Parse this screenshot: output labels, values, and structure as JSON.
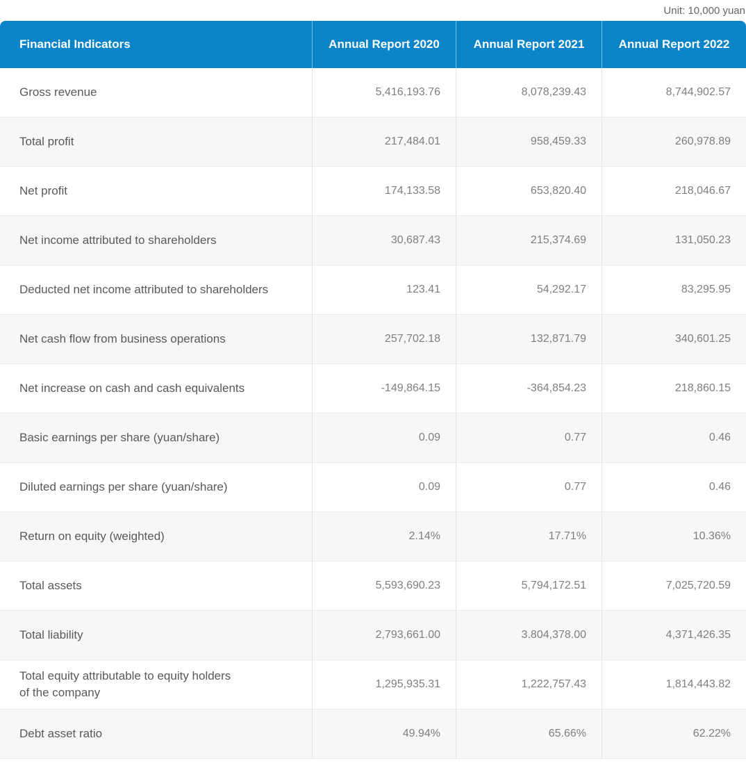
{
  "unit_label": "Unit: 10,000 yuan",
  "colors": {
    "header_bg": "#0a84c8",
    "header_text": "#ffffff",
    "header_divider": "#7ebede",
    "row_alt_bg": "#f7f7f7",
    "row_border": "#ebebeb",
    "column_border": "#e4e4e4",
    "label_text": "#595959",
    "value_text": "#7f7f7f",
    "unit_text": "#666666"
  },
  "table": {
    "headers": [
      "Financial Indicators",
      "Annual Report 2020",
      "Annual Report 2021",
      "Annual Report 2022"
    ],
    "rows": [
      {
        "label": "Gross revenue",
        "values": [
          "5,416,193.76",
          "8,078,239.43",
          "8,744,902.57"
        ]
      },
      {
        "label": "Total profit",
        "values": [
          "217,484.01",
          "958,459.33",
          "260,978.89"
        ]
      },
      {
        "label": "Net profit",
        "values": [
          "174,133.58",
          "653,820.40",
          "218,046.67"
        ]
      },
      {
        "label": "Net income attributed to shareholders",
        "values": [
          "30,687.43",
          "215,374.69",
          "131,050.23"
        ]
      },
      {
        "label": "Deducted net income attributed to shareholders",
        "values": [
          "123.41",
          "54,292.17",
          "83,295.95"
        ]
      },
      {
        "label": "Net cash flow from business operations",
        "values": [
          "257,702.18",
          "132,871.79",
          "340,601.25"
        ]
      },
      {
        "label": "Net increase on cash and cash equivalents",
        "values": [
          "-149,864.15",
          "-364,854.23",
          "218,860.15"
        ]
      },
      {
        "label": "Basic earnings per share (yuan/share)",
        "values": [
          "0.09",
          "0.77",
          "0.46"
        ]
      },
      {
        "label": "Diluted earnings per share (yuan/share)",
        "values": [
          "0.09",
          "0.77",
          "0.46"
        ]
      },
      {
        "label": "Return on equity (weighted)",
        "values": [
          "2.14%",
          "17.71%",
          "10.36%"
        ]
      },
      {
        "label": "Total assets",
        "values": [
          "5,593,690.23",
          "5,794,172.51",
          "7,025,720.59"
        ]
      },
      {
        "label": "Total liability",
        "values": [
          "2,793,661.00",
          "3.804,378.00",
          "4,371,426.35"
        ]
      },
      {
        "label": "Total equity attributable to equity holders\nof the company",
        "values": [
          "1,295,935.31",
          "1,222,757.43",
          "1,814,443.82"
        ]
      },
      {
        "label": "Debt asset ratio",
        "values": [
          "49.94%",
          "65.66%",
          "62.22%"
        ]
      }
    ]
  }
}
